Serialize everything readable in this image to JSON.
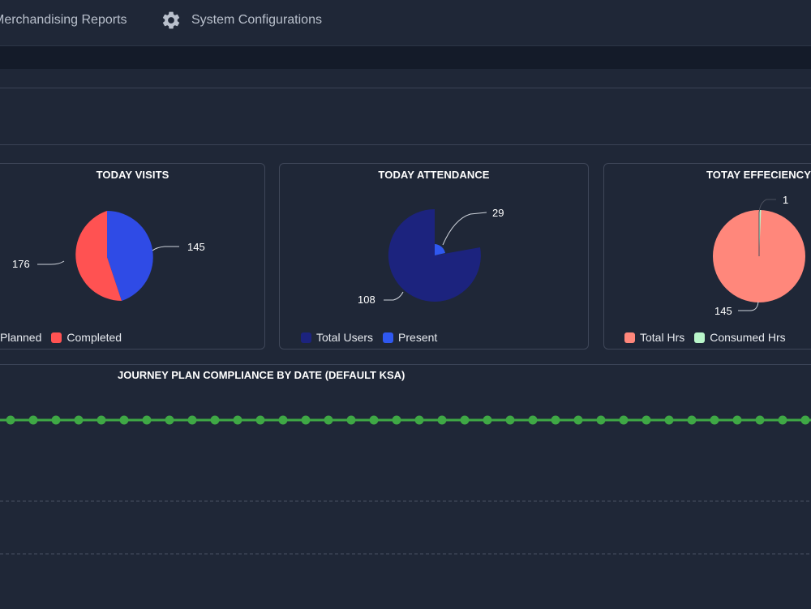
{
  "nav": {
    "merchandising": "Merchandising Reports",
    "system": "System Configurations"
  },
  "cards": {
    "visits": {
      "title": "TODAY VISITS",
      "legend": [
        {
          "label": "Planned",
          "color": "#2f4be6"
        },
        {
          "label": "Completed",
          "color": "#ff5252"
        }
      ],
      "data_labels": [
        "176",
        "145"
      ]
    },
    "attendance": {
      "title": "TODAY ATTENDANCE",
      "legend": [
        {
          "label": "Total Users",
          "color": "#1c237e"
        },
        {
          "label": "Present",
          "color": "#2f58f0"
        }
      ],
      "data_labels": [
        "29",
        "108"
      ]
    },
    "efficiency": {
      "title": "TOTAY EFFECIENCY",
      "legend": [
        {
          "label": "Total Hrs",
          "color": "#ff877b"
        },
        {
          "label": "Consumed Hrs",
          "color": "#b9f6ca"
        }
      ],
      "data_labels": [
        "1",
        "145"
      ]
    }
  },
  "compliance": {
    "title": "JOURNEY PLAN COMPLIANCE BY DATE (DEFAULT KSA)",
    "line_color": "#3fa845"
  },
  "chart_data": [
    {
      "type": "pie",
      "title": "TODAY VISITS",
      "categories": [
        "Planned",
        "Completed"
      ],
      "values": [
        145,
        176
      ]
    },
    {
      "type": "pie",
      "title": "TODAY ATTENDANCE",
      "categories": [
        "Total Users",
        "Present"
      ],
      "values": [
        108,
        29
      ]
    },
    {
      "type": "pie",
      "title": "TOTAY EFFECIENCY",
      "categories": [
        "Total Hrs",
        "Consumed Hrs"
      ],
      "values": [
        145,
        1
      ]
    }
  ]
}
